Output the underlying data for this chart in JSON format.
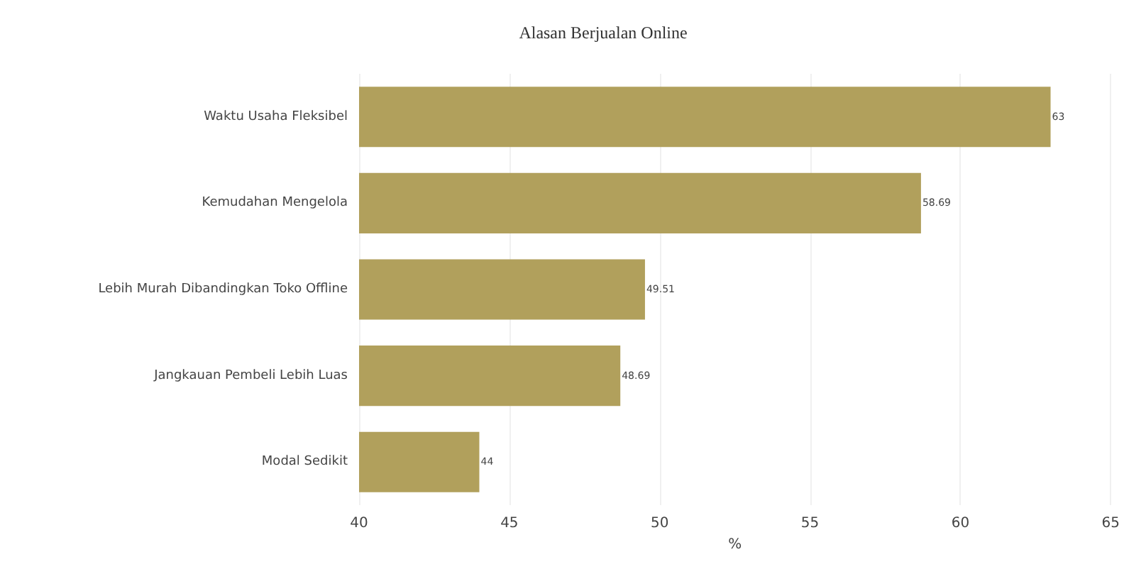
{
  "chart_data": {
    "type": "bar",
    "orientation": "horizontal",
    "title": "Alasan Berjualan Online",
    "xlabel": "%",
    "categories": [
      "Waktu Usaha Fleksibel",
      "Kemudahan Mengelola",
      "Lebih Murah Dibandingkan Toko Offline",
      "Jangkauan Pembeli Lebih Luas",
      "Modal Sedikit"
    ],
    "values": [
      63,
      58.69,
      49.51,
      48.69,
      44
    ],
    "color": "#b1a05c",
    "data_labels": true,
    "xlim": [
      40,
      65
    ],
    "xticks": [
      40,
      45,
      50,
      55,
      60,
      65
    ],
    "grid": "x"
  }
}
